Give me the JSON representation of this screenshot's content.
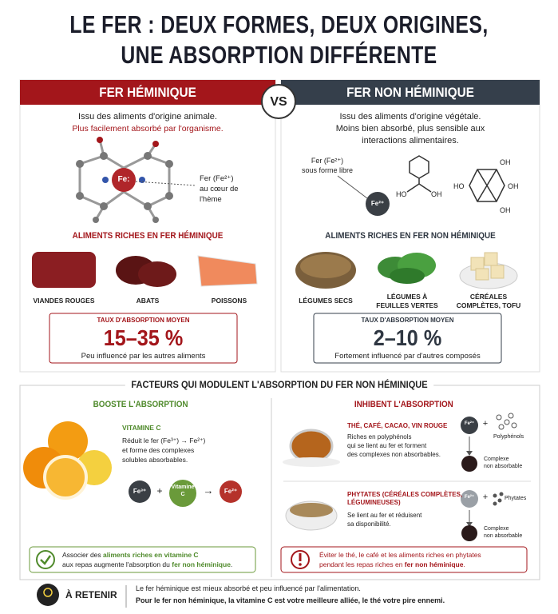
{
  "header": {
    "title": [
      "LE FER : DEUX FORMES, DEUX ORIGINES,",
      "UNE ABSORPTION DIFFÉRENTE"
    ]
  },
  "vs": "VS",
  "heme": {
    "title": "FER HÉMINIQUE",
    "intro": [
      "Issu des aliments d'origine animale.",
      "Plus facilement absorbé par l'organisme."
    ],
    "molecule_center": "Fe:",
    "molecule_label": [
      "Fer (Fe²⁺)",
      "au cœur de",
      "l'hème"
    ],
    "foods_title": "ALIMENTS RICHES EN FER HÉMINIQUE",
    "foods": [
      "VIANDES ROUGES",
      "ABATS",
      "POISSONS"
    ],
    "rate_title": "TAUX D'ABSORPTION MOYEN",
    "rate": "15–35 %",
    "rate_note": "Peu influencé par les autres aliments"
  },
  "nonheme": {
    "title": "FER NON HÉMINIQUE",
    "intro": [
      "Issu des aliments d'origine végétale.",
      "Moins bien absorbé, plus sensible aux",
      "interactions alimentaires."
    ],
    "free_label": [
      "Fer (Fe²⁺)",
      "sous forme libre"
    ],
    "ion": "Fe²⁺",
    "molecule1": [
      "HO",
      "OH"
    ],
    "molecule2": [
      "OH",
      "HO",
      "OH",
      "OH"
    ],
    "foods_title": "ALIMENTS RICHES EN FER NON HÉMINIQUE",
    "foods": [
      [
        "LÉGUMES SECS"
      ],
      [
        "LÉGUMES À",
        "FEUILLES VERTES"
      ],
      [
        "CÉRÉALES",
        "COMPLÈTES, TOFU"
      ]
    ],
    "rate_title": "TAUX D'ABSORPTION MOYEN",
    "rate": "2–10 %",
    "rate_note": "Fortement influencé par d'autres composés"
  },
  "factors": {
    "title": "FACTEURS QUI MODULENT L'ABSORPTION DU FER NON HÉMINIQUE",
    "boost": {
      "title": "BOOSTE L'ABSORPTION",
      "item_title": "VITAMINE C",
      "text": [
        "Réduit le fer (Fe³⁺) → Fe²⁺)",
        "et forme des complexes",
        "solubles absorbables."
      ],
      "diagram": {
        "left": "Fe³⁺",
        "plus": "+",
        "middle": [
          "Vitamine",
          "C"
        ],
        "arrow": "→",
        "right": "Fe²⁺"
      },
      "tip": [
        [
          "Associer des ",
          "aliments riches en vitamine C"
        ],
        [
          "aux repas augmente l'absorption du ",
          "fer non héminique",
          "."
        ]
      ]
    },
    "inhibit": {
      "title": "INHIBENT L'ABSORPTION",
      "polyphenols": {
        "title": [
          "THÉ, CAFÉ, CACAO, VIN ROUGE"
        ],
        "text": [
          "Riches en polyphénols",
          "qui se lient au fer et forment",
          "des complexes non absorbables."
        ],
        "ion": "Fe²⁺",
        "plus": "+",
        "compound": "Polyphénols",
        "result": [
          "Complexe",
          "non absorbable"
        ]
      },
      "phytates": {
        "title": [
          "PHYTATES (CÉRÉALES COMPLÈTES,",
          "LÉGUMINEUSES)"
        ],
        "text": [
          "Se lient au fer et réduisent",
          "sa disponibilité."
        ],
        "ion": "Fe²⁺",
        "plus": "+",
        "compound": "Phytates",
        "result": [
          "Complexe",
          "non absorbable"
        ]
      },
      "warning": [
        [
          "Éviter le thé, le café et les aliments riches en phytates"
        ],
        [
          "pendant les repas riches en ",
          "fer non héminique",
          "."
        ]
      ]
    }
  },
  "retain": {
    "title": "À RETENIR",
    "lines": [
      "Le fer héminique est mieux absorbé et peu influencé par l'alimentation.",
      "Pour le fer non héminique, la vitamine C est votre meilleure alliée, le thé votre pire ennemi."
    ]
  }
}
